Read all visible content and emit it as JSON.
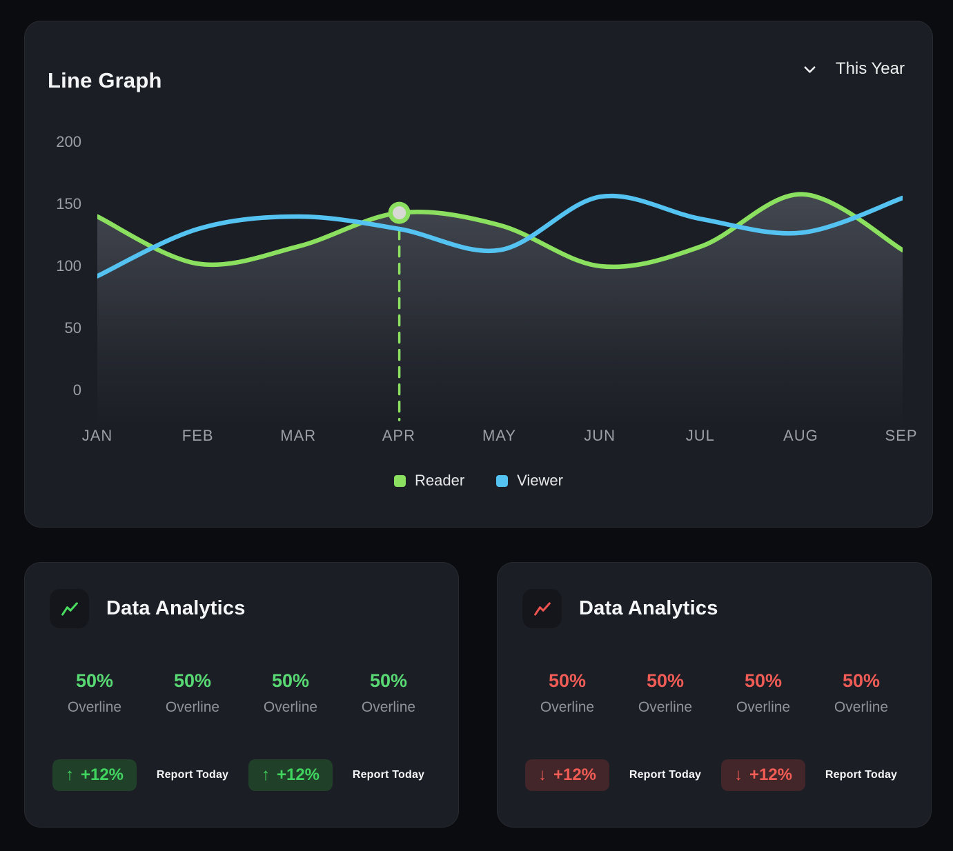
{
  "chart_card": {
    "title": "Line Graph",
    "dropdown": {
      "label": "This Year",
      "icon": "chevron-down"
    }
  },
  "chart_data": {
    "type": "line",
    "title": "Line Graph",
    "categories": [
      "JAN",
      "FEB",
      "MAR",
      "APR",
      "MAY",
      "JUN",
      "JUL",
      "AUG",
      "SEP"
    ],
    "series": [
      {
        "name": "Reader",
        "color": "#8ce05f",
        "area": true,
        "values": [
          140,
          102,
          116,
          143,
          133,
          100,
          116,
          158,
          113
        ]
      },
      {
        "name": "Viewer",
        "color": "#54c3f1",
        "area": false,
        "values": [
          92,
          130,
          140,
          130,
          113,
          156,
          138,
          127,
          155
        ]
      }
    ],
    "ylim": [
      0,
      200
    ],
    "yticks": [
      200,
      150,
      100,
      50,
      0
    ],
    "grid": false,
    "legend_position": "bottom",
    "highlight": {
      "series": "Reader",
      "category": "APR",
      "value": 143,
      "marker_fill": "#d8d9d4",
      "dashed_line": true
    },
    "area_fill_color": "#9aa0ac"
  },
  "analytics_cards": [
    {
      "title": "Data Analytics",
      "trend": "up",
      "accent": "#58d973",
      "icon": "trend-up-icon",
      "stats": [
        {
          "value": "50%",
          "label": "Overline"
        },
        {
          "value": "50%",
          "label": "Overline"
        },
        {
          "value": "50%",
          "label": "Overline"
        },
        {
          "value": "50%",
          "label": "Overline"
        }
      ],
      "rows": [
        {
          "arrow": "↑",
          "delta": "+12%",
          "report": "Report Today"
        },
        {
          "arrow": "↑",
          "delta": "+12%",
          "report": "Report Today"
        }
      ]
    },
    {
      "title": "Data Analytics",
      "trend": "down",
      "accent": "#ef5b55",
      "icon": "trend-down-icon",
      "stats": [
        {
          "value": "50%",
          "label": "Overline"
        },
        {
          "value": "50%",
          "label": "Overline"
        },
        {
          "value": "50%",
          "label": "Overline"
        },
        {
          "value": "50%",
          "label": "Overline"
        }
      ],
      "rows": [
        {
          "arrow": "↓",
          "delta": "+12%",
          "report": "Report Today"
        },
        {
          "arrow": "↓",
          "delta": "+12%",
          "report": "Report Today"
        }
      ]
    }
  ]
}
